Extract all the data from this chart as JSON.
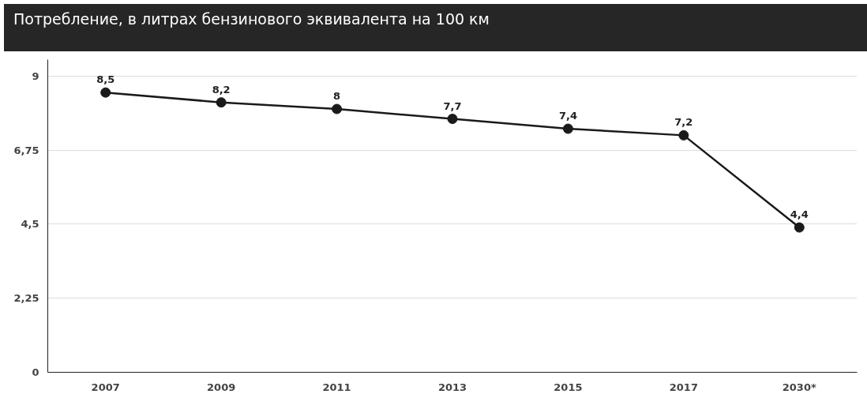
{
  "chart_data": {
    "type": "line",
    "title": "Потребление, в литрах бензинового эквивалента на 100 км",
    "categories": [
      "2007",
      "2009",
      "2011",
      "2013",
      "2015",
      "2017",
      "2030*"
    ],
    "series": [
      {
        "color": "#1a1a1a",
        "values": [
          8.5,
          8.2,
          8,
          7.7,
          7.4,
          7.2,
          4.4
        ],
        "value_labels": [
          "8,5",
          "8,2",
          "8",
          "7,7",
          "7,4",
          "7,2",
          "4,4"
        ]
      }
    ],
    "ylim": [
      0,
      9.5
    ],
    "yticks": [
      0,
      {
        "value": 2.25,
        "label": "2,25"
      },
      {
        "value": 4.5,
        "label": "4,5"
      },
      {
        "value": 6.75,
        "label": "6,75"
      },
      9
    ],
    "grid": "y",
    "marker": "circle",
    "line_style": "solid"
  }
}
